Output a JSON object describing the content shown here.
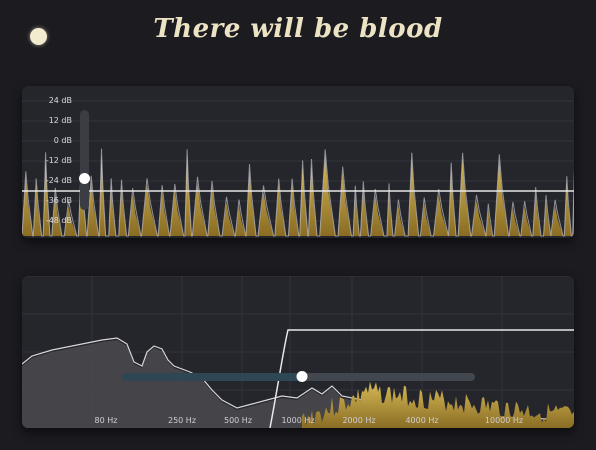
{
  "header": {
    "title": "There will be blood",
    "power_state": "on"
  },
  "colors": {
    "background": "#1b1b20",
    "panel": "#25252c",
    "gold_fill_top": "#d8bb57",
    "gold_fill_bottom": "#8a6c24",
    "line": "#e8e8ea",
    "grid": "#34343b",
    "spectrum_gray": "#4a4a4f"
  },
  "level_meter": {
    "db_labels": [
      "24 dB",
      "12 dB",
      "0 dB",
      "-12 dB",
      "-24 dB",
      "-36 dB",
      "-48 dB"
    ],
    "threshold_db": -30,
    "gain_slider_db": -22
  },
  "spectrum": {
    "freq_labels": [
      "80 Hz",
      "250 Hz",
      "500 Hz",
      "1000 Hz",
      "2000 Hz",
      "4000 Hz",
      "10000 Hz"
    ],
    "crossover_slider_fraction": 0.51
  }
}
